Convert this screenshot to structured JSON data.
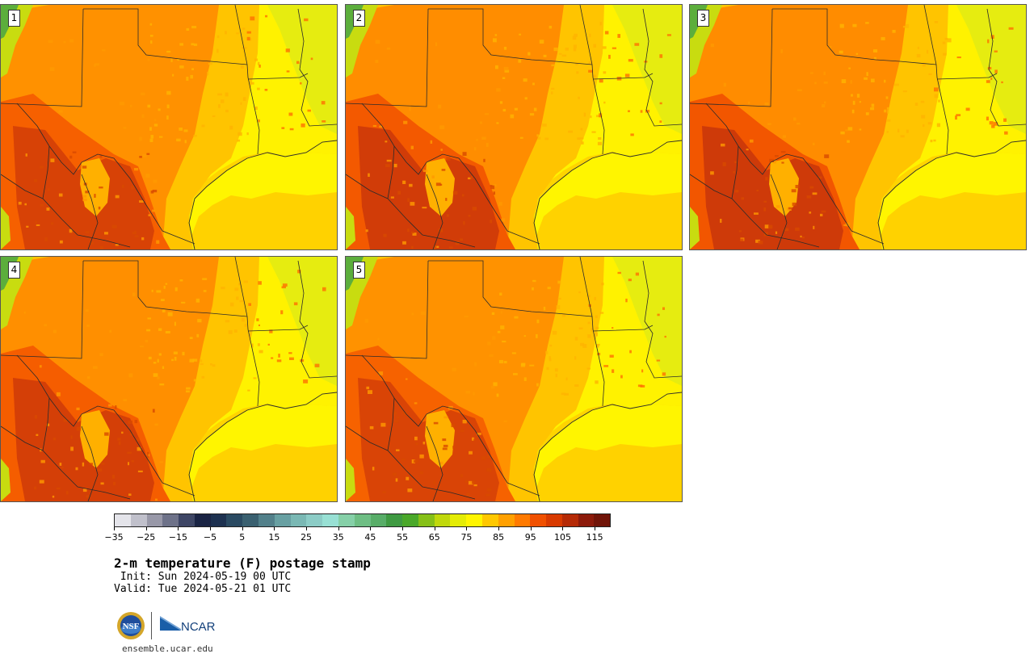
{
  "title": "2-m temperature (F) postage stamp",
  "init_line": " Init: Sun 2024-05-19 00 UTC",
  "valid_line": "Valid: Tue 2024-05-21 01 UTC",
  "website": "ensemble.ucar.edu",
  "logos": {
    "nsf_text": "NSF",
    "ncar_text": "NCAR"
  },
  "members": [
    {
      "label": "1",
      "heat": 0.62
    },
    {
      "label": "2",
      "heat": 0.78
    },
    {
      "label": "3",
      "heat": 0.85
    },
    {
      "label": "4",
      "heat": 0.7
    },
    {
      "label": "5",
      "heat": 0.58
    }
  ],
  "colorbar": {
    "colors": [
      "#e4e4ea",
      "#c0c0cb",
      "#9898a8",
      "#6e7289",
      "#3e4665",
      "#1a2444",
      "#1d3150",
      "#2a4a62",
      "#3a6070",
      "#52808a",
      "#68a0a2",
      "#7ab8b4",
      "#8cccc6",
      "#98e0d4",
      "#86d0a8",
      "#6ebe84",
      "#58ad68",
      "#3f9a42",
      "#4aa82a",
      "#86c018",
      "#c0d80c",
      "#e4ec06",
      "#fff500",
      "#ffc800",
      "#ffa000",
      "#ff7a00",
      "#f05000",
      "#d83a00",
      "#b52a06",
      "#8c1a0a",
      "#701408"
    ],
    "tick_labels": [
      "−35",
      "−25",
      "−15",
      "−5",
      "5",
      "15",
      "25",
      "35",
      "45",
      "55",
      "65",
      "75",
      "85",
      "95",
      "105",
      "115"
    ]
  }
}
